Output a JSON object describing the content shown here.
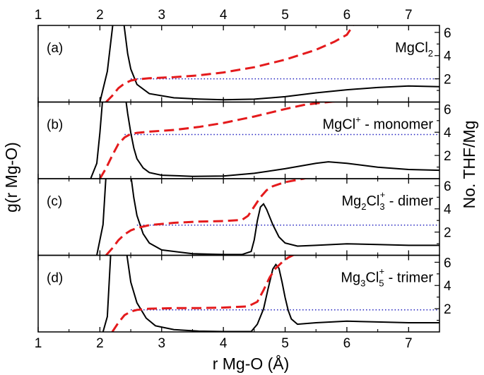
{
  "chart_data": {
    "type": "line",
    "xlabel": "r Mg-O (Å)",
    "ylabel_left": "g(r Mg-O)",
    "ylabel_right": "No. THF/Mg",
    "xlim": [
      1,
      7.5
    ],
    "x_ticks": [
      "1",
      "2",
      "3",
      "4",
      "5",
      "6",
      "7"
    ],
    "right_ylim": [
      0,
      6.6
    ],
    "right_ticks": [
      "2",
      "4",
      "6"
    ],
    "colors": {
      "rdf": "#000000",
      "coordination": "#e41a1c",
      "plateau": "#1f1fbf"
    },
    "panels": [
      {
        "tag": "(a)",
        "label": {
          "base": "MgCl",
          "sub": "2",
          "sup": "",
          "sub2": "",
          "sup2": "",
          "tail": ""
        },
        "plateau": 2,
        "g_ylim": [
          0,
          10
        ],
        "rdf": {
          "x": [
            2.0,
            2.12,
            2.2,
            2.25,
            2.28,
            2.31,
            2.34,
            2.37,
            2.4,
            2.45,
            2.5,
            2.6,
            2.8,
            3.2,
            3.6,
            4.0,
            4.5,
            5.0,
            5.5,
            6.0,
            6.5,
            7.0,
            7.5
          ],
          "y": [
            0,
            4.0,
            9.5,
            13.0,
            14.0,
            14.0,
            13.0,
            11.5,
            9.5,
            6.3,
            4.3,
            2.3,
            1.1,
            0.55,
            0.4,
            0.3,
            0.38,
            0.7,
            1.2,
            1.6,
            1.9,
            2.1,
            2.0
          ]
        },
        "coordination": {
          "x": [
            2.1,
            2.2,
            2.3,
            2.4,
            2.5,
            2.6,
            2.8,
            3.2,
            3.6,
            4.0,
            4.5,
            5.0,
            5.5,
            5.8,
            6.0,
            6.1
          ],
          "y": [
            0,
            0.55,
            1.2,
            1.6,
            1.85,
            1.95,
            2.05,
            2.15,
            2.3,
            2.55,
            3.0,
            3.65,
            4.5,
            5.2,
            5.8,
            6.6
          ]
        }
      },
      {
        "tag": "(b)",
        "label": {
          "base": "MgCl",
          "sub": "",
          "sup": "+",
          "sub2": "",
          "sup2": "",
          "tail": " - monomer"
        },
        "plateau": 3.8,
        "g_ylim": [
          0,
          10
        ],
        "rdf": {
          "x": [
            1.85,
            1.95,
            2.0,
            2.05,
            2.1,
            2.3,
            2.4,
            2.45,
            2.5,
            2.55,
            2.6,
            2.7,
            2.8,
            3.0,
            3.5,
            4.0,
            4.5,
            5.0,
            5.5,
            5.7,
            6.0,
            6.5,
            7.0,
            7.5
          ],
          "y": [
            0,
            2.0,
            6.0,
            11.0,
            14.0,
            14.0,
            11.5,
            8.5,
            6.0,
            4.0,
            2.6,
            1.4,
            0.8,
            0.45,
            0.3,
            0.35,
            0.7,
            1.3,
            2.0,
            2.2,
            2.0,
            1.5,
            1.2,
            1.1
          ]
        },
        "coordination": {
          "x": [
            2.0,
            2.1,
            2.2,
            2.3,
            2.4,
            2.5,
            2.6,
            2.8,
            3.2,
            3.6,
            4.0,
            4.5,
            5.0,
            5.3,
            5.6,
            5.9
          ],
          "y": [
            0,
            0.9,
            2.0,
            3.0,
            3.55,
            3.85,
            3.95,
            4.05,
            4.2,
            4.45,
            4.8,
            5.35,
            6.0,
            6.35,
            6.55,
            6.7
          ]
        }
      },
      {
        "tag": "(c)",
        "label": {
          "base": "Mg",
          "sub": "2",
          "sup": "",
          "sub2": "3",
          "sup2": "+",
          "tail": " - dimer",
          "mid": "Cl"
        },
        "plateau": 2.6,
        "g_ylim": [
          0,
          10
        ],
        "rdf": {
          "x": [
            1.95,
            2.05,
            2.1,
            2.15,
            2.45,
            2.5,
            2.55,
            2.6,
            2.7,
            2.8,
            3.0,
            3.5,
            4.0,
            4.3,
            4.45,
            4.5,
            4.55,
            4.6,
            4.65,
            4.7,
            4.8,
            4.9,
            5.0,
            5.2,
            5.5,
            6.0,
            6.5,
            7.0,
            7.5
          ],
          "y": [
            0,
            4.0,
            10.5,
            14.0,
            14.0,
            10.5,
            7.5,
            5.2,
            2.8,
            1.6,
            0.7,
            0.2,
            0.1,
            0.1,
            0.5,
            2.0,
            4.5,
            6.3,
            6.7,
            6.0,
            4.0,
            2.4,
            1.6,
            1.2,
            1.3,
            1.5,
            1.4,
            1.3,
            1.3
          ]
        },
        "coordination": {
          "x": [
            2.1,
            2.2,
            2.3,
            2.4,
            2.5,
            2.6,
            2.8,
            3.2,
            3.6,
            4.0,
            4.3,
            4.4,
            4.5,
            4.6,
            4.7,
            4.8,
            5.0,
            5.3,
            5.45
          ],
          "y": [
            0,
            0.6,
            1.3,
            1.8,
            2.15,
            2.35,
            2.6,
            2.8,
            2.9,
            2.95,
            3.05,
            3.4,
            4.2,
            5.0,
            5.6,
            5.95,
            6.3,
            6.6,
            6.8
          ]
        }
      },
      {
        "tag": "(d)",
        "label": {
          "base": "Mg",
          "sub": "3",
          "sup": "",
          "sub2": "5",
          "sup2": "+",
          "tail": " - trimer",
          "mid": "Cl"
        },
        "plateau": 1.9,
        "g_ylim": [
          0,
          10
        ],
        "rdf": {
          "x": [
            2.05,
            2.12,
            2.16,
            2.2,
            2.38,
            2.42,
            2.5,
            2.6,
            2.75,
            2.9,
            3.2,
            3.6,
            4.0,
            4.45,
            4.55,
            4.65,
            4.72,
            4.8,
            4.85,
            4.9,
            4.95,
            5.0,
            5.05,
            5.1,
            5.2,
            5.5,
            6.0,
            6.5,
            7.0,
            7.5
          ],
          "y": [
            0,
            2.0,
            8.0,
            14.0,
            14.0,
            11.0,
            6.5,
            3.8,
            1.8,
            0.8,
            0.3,
            0.1,
            0.05,
            0.05,
            1.0,
            3.0,
            5.5,
            8.2,
            8.8,
            8.3,
            6.5,
            4.5,
            2.8,
            1.7,
            1.0,
            1.2,
            1.4,
            1.3,
            1.2,
            1.2
          ]
        },
        "coordination": {
          "x": [
            2.2,
            2.3,
            2.4,
            2.5,
            2.6,
            2.8,
            3.2,
            3.6,
            4.0,
            4.4,
            4.55,
            4.65,
            4.75,
            4.85,
            4.95,
            5.05,
            5.2
          ],
          "y": [
            0,
            0.8,
            1.45,
            1.75,
            1.9,
            2.0,
            2.05,
            2.05,
            2.1,
            2.2,
            2.6,
            3.6,
            4.7,
            5.5,
            6.0,
            6.4,
            6.8
          ]
        }
      }
    ]
  }
}
